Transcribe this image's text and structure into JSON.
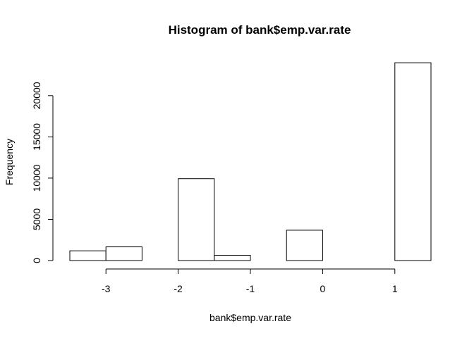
{
  "chart_data": {
    "type": "bar",
    "title": "Histogram of bank$emp.var.rate",
    "xlabel": "bank$emp.var.rate",
    "ylabel": "Frequency",
    "bins": [
      {
        "start": -3.5,
        "end": -3.0,
        "count": 1180
      },
      {
        "start": -3.0,
        "end": -2.5,
        "count": 1660
      },
      {
        "start": -2.5,
        "end": -2.0,
        "count": 0
      },
      {
        "start": -2.0,
        "end": -1.5,
        "count": 9930
      },
      {
        "start": -1.5,
        "end": -1.0,
        "count": 640
      },
      {
        "start": -1.0,
        "end": -0.5,
        "count": 0
      },
      {
        "start": -0.5,
        "end": 0.0,
        "count": 3680
      },
      {
        "start": 0.0,
        "end": 0.5,
        "count": 0
      },
      {
        "start": 0.5,
        "end": 1.0,
        "count": 0
      },
      {
        "start": 1.0,
        "end": 1.5,
        "count": 23990
      }
    ],
    "x_ticks": [
      -3,
      -2,
      -1,
      0,
      1
    ],
    "x_tick_labels": [
      "-3",
      "-2",
      "-1",
      "0",
      "1"
    ],
    "y_ticks": [
      0,
      5000,
      10000,
      15000,
      20000
    ],
    "y_tick_labels": [
      "0",
      "5000",
      "10000",
      "15000",
      "20000"
    ],
    "xlim": [
      -3.5,
      1.5
    ],
    "ylim": [
      0,
      24000
    ],
    "grid": false,
    "legend": "none"
  }
}
